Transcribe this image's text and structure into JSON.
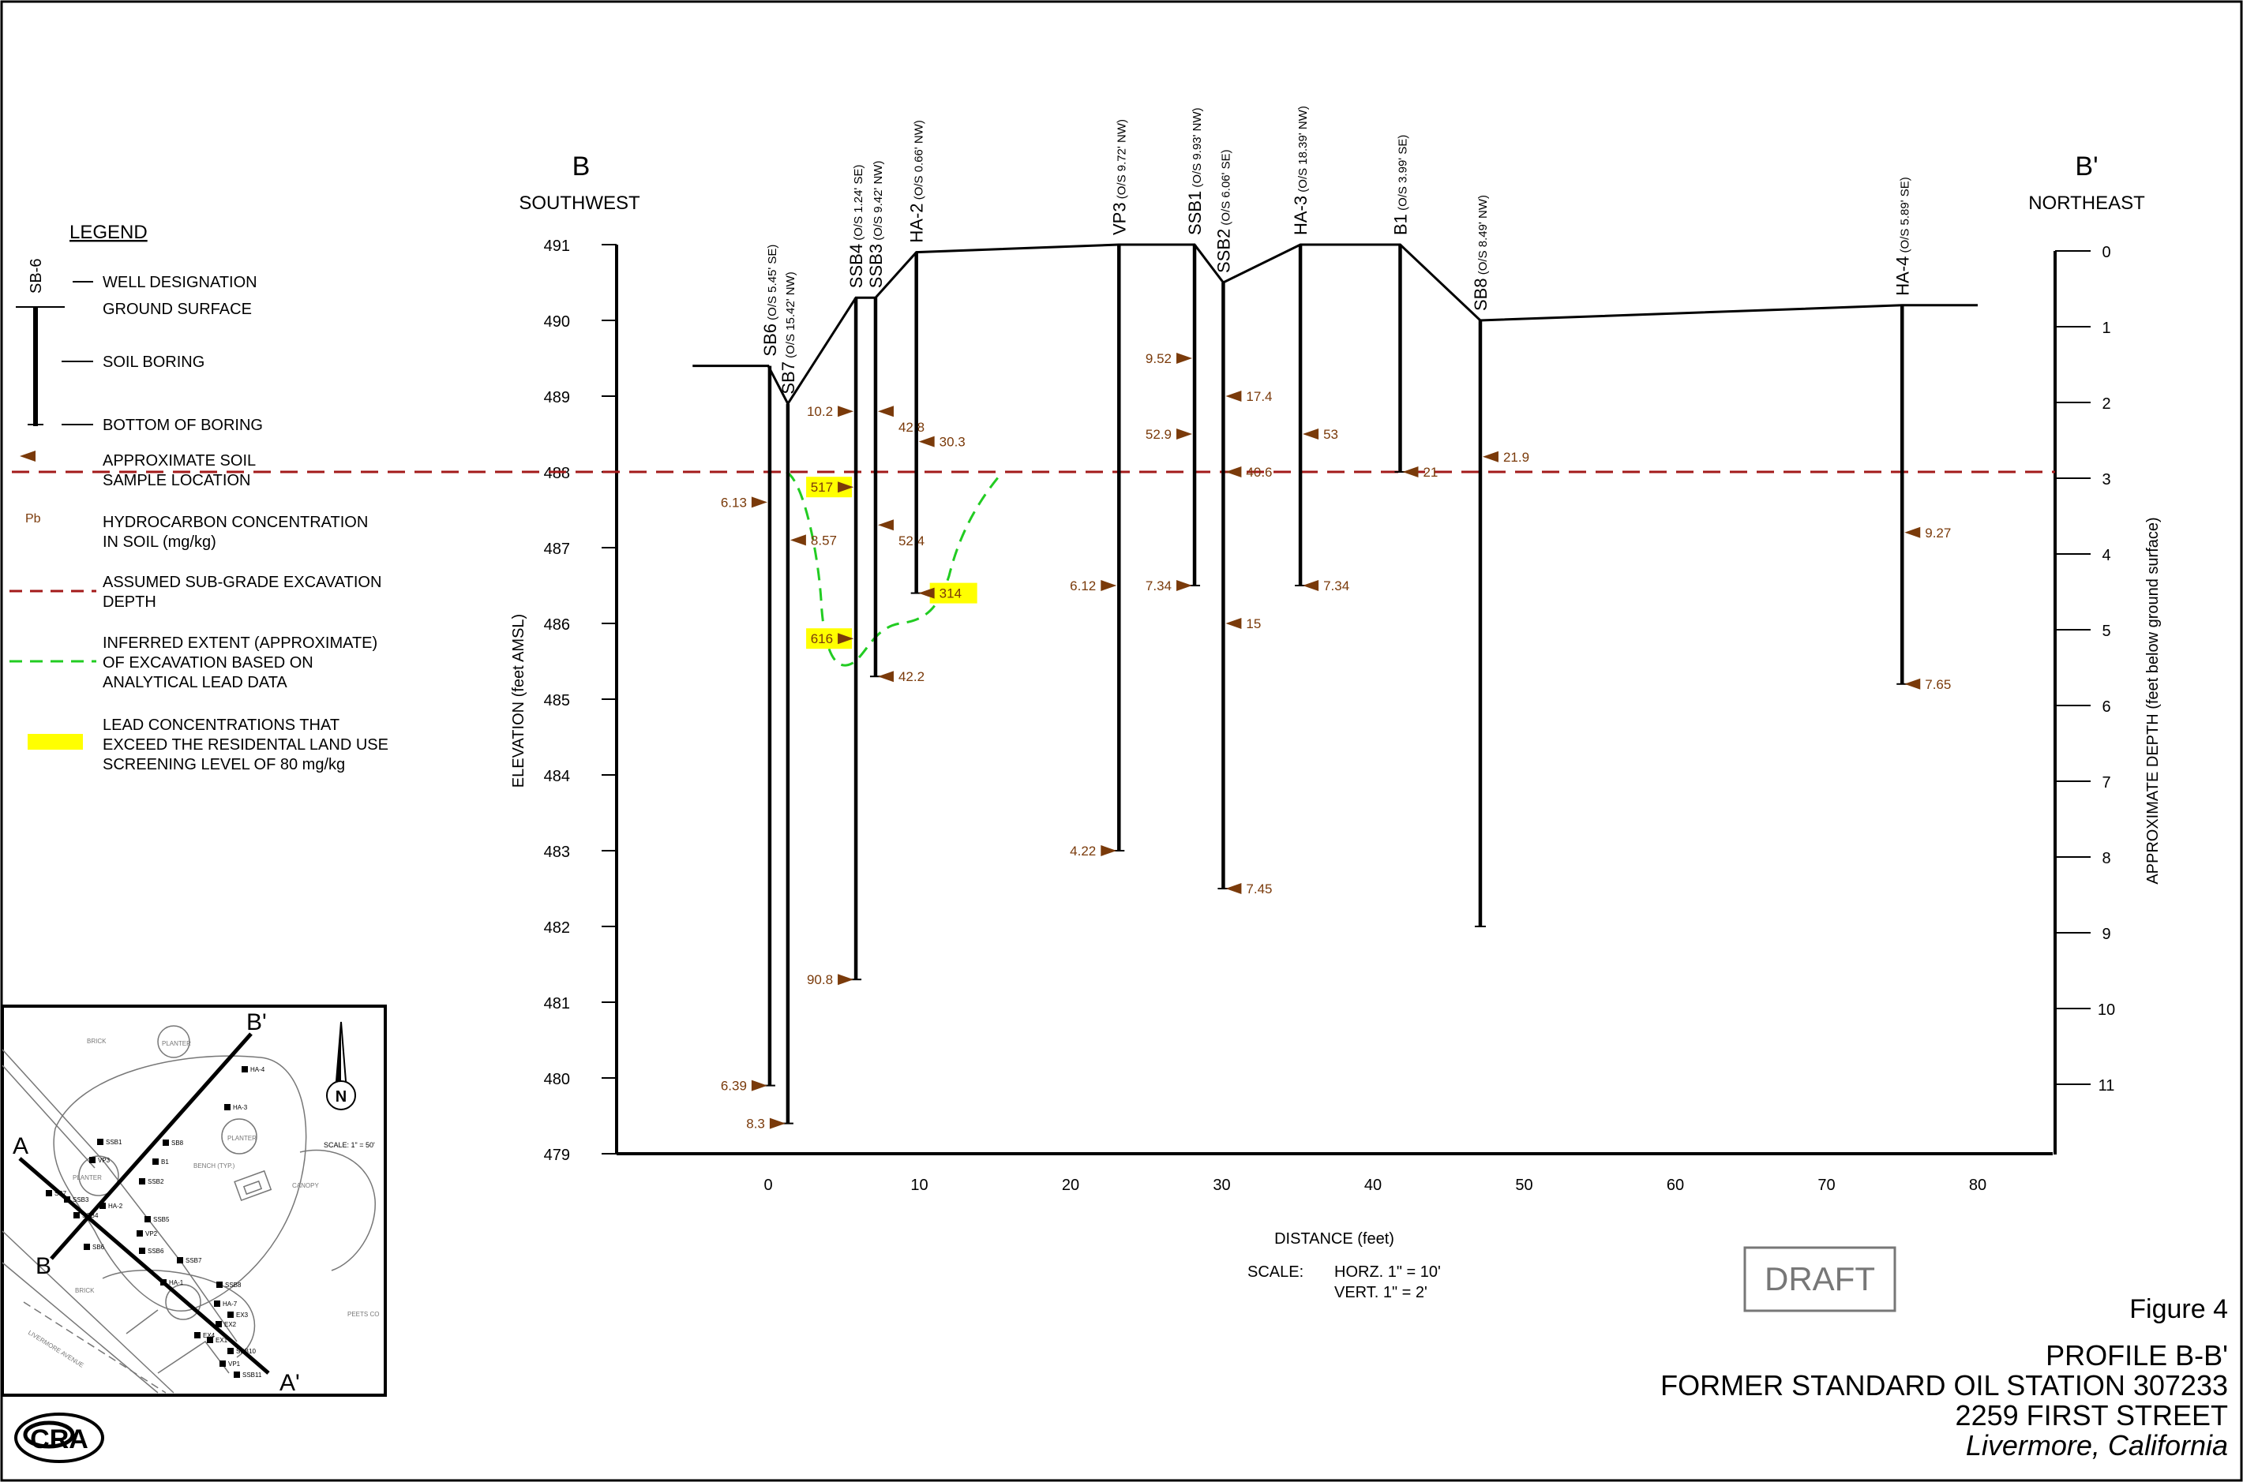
{
  "sheet": {
    "figure_label": "Figure 4",
    "title_lines": [
      "PROFILE B-B'",
      "FORMER STANDARD OIL STATION 307233",
      "2259 FIRST STREET"
    ],
    "location": "Livermore, California",
    "draft_stamp": "DRAFT",
    "logo_text": "CRA"
  },
  "profile": {
    "left_end": "B",
    "right_end": "B'",
    "left_direction": "SOUTHWEST",
    "right_direction": "NORTHEAST",
    "x_label": "DISTANCE (feet)",
    "y_label_left": "ELEVATION (feet AMSL)",
    "y_label_right": "APPROXIMATE DEPTH (feet below ground surface)",
    "scale_label": "SCALE:",
    "scale_horz": "HORZ.   1\" = 10'",
    "scale_vert": "VERT.    1\" = 2'"
  },
  "legend": {
    "title": "LEGEND",
    "well_sample": "SB-6",
    "hc_sample": "Pb",
    "items": {
      "well_designation": "WELL DESIGNATION",
      "ground_surface": "GROUND SURFACE",
      "soil_boring": "SOIL BORING",
      "bottom_of_boring": "BOTTOM OF BORING",
      "soil_sample": [
        "APPROXIMATE SOIL",
        "SAMPLE LOCATION"
      ],
      "hydrocarbon": [
        "HYDROCARBON CONCENTRATION",
        "IN SOIL (mg/kg)"
      ],
      "excavation_depth": [
        "ASSUMED SUB-GRADE EXCAVATION",
        "DEPTH"
      ],
      "inferred_extent": [
        "INFERRED EXTENT (APPROXIMATE)",
        "OF EXCAVATION BASED ON",
        "ANALYTICAL LEAD DATA"
      ],
      "lead_exceed": [
        "LEAD CONCENTRATIONS THAT",
        "EXCEED THE RESIDENTAL LAND USE",
        "SCREENING LEVEL OF 80 mg/kg"
      ]
    }
  },
  "colors": {
    "marker": "#7a3a0a",
    "value_text": "#7a3a0a",
    "excavation_line": "#a31a1a",
    "extent_line": "#22cc22",
    "highlight": "#ffff00",
    "draft": "#777777"
  },
  "chart_data": {
    "type": "profile",
    "x_ticks": [
      0,
      10,
      20,
      30,
      40,
      50,
      60,
      70,
      80
    ],
    "elevation_ticks": [
      491,
      490,
      489,
      488,
      487,
      486,
      485,
      484,
      483,
      482,
      481,
      480,
      479
    ],
    "depth_ticks": [
      0,
      1,
      2,
      3,
      4,
      5,
      6,
      7,
      8,
      9,
      10,
      11
    ],
    "excavation_elevation": 488,
    "ground_profile": [
      [
        -5,
        489.4
      ],
      [
        0,
        489.4
      ],
      [
        1.3,
        488.9
      ],
      [
        5.8,
        490.3
      ],
      [
        7.1,
        490.3
      ],
      [
        9.8,
        490.9
      ],
      [
        23.2,
        491.0
      ],
      [
        28.2,
        491.0
      ],
      [
        30.1,
        490.5
      ],
      [
        35.2,
        491.0
      ],
      [
        41.8,
        491.0
      ],
      [
        47.1,
        490.0
      ],
      [
        75.0,
        490.2
      ],
      [
        80.0,
        490.2
      ]
    ],
    "borings": [
      {
        "name": "SB6",
        "offset": "(O/S 5.45' SE)",
        "x": 0.1,
        "top": 489.4,
        "bottom": 479.9,
        "samples": [
          {
            "elev": 487.6,
            "value": "6.13",
            "side": "left"
          },
          {
            "elev": 479.9,
            "value": "6.39",
            "side": "left"
          }
        ]
      },
      {
        "name": "SB7",
        "offset": "(O/S 15.42' NW)",
        "x": 1.3,
        "top": 488.9,
        "bottom": 479.4,
        "samples": [
          {
            "elev": 487.1,
            "value": "8.57",
            "side": "right"
          },
          {
            "elev": 479.4,
            "value": "8.3",
            "side": "left"
          }
        ]
      },
      {
        "name": "SSB4",
        "offset": "(O/S 1.24' SE)",
        "x": 5.8,
        "top": 490.3,
        "bottom": 481.3,
        "samples": [
          {
            "elev": 488.8,
            "value": "10.2",
            "side": "left"
          },
          {
            "elev": 487.8,
            "value": "517",
            "side": "left",
            "highlight": true
          },
          {
            "elev": 485.8,
            "value": "616",
            "side": "left",
            "highlight": true
          },
          {
            "elev": 481.3,
            "value": "90.8",
            "side": "left"
          }
        ]
      },
      {
        "name": "SSB3",
        "offset": "(O/S 9.42' NW)",
        "x": 7.1,
        "top": 490.3,
        "bottom": 485.3,
        "samples": [
          {
            "elev": 488.8,
            "value": "42.8",
            "side": "right_below"
          },
          {
            "elev": 487.3,
            "value": "52.4",
            "side": "right_below"
          },
          {
            "elev": 485.3,
            "value": "42.2",
            "side": "right"
          }
        ]
      },
      {
        "name": "HA-2",
        "offset": "(O/S 0.66' NW)",
        "x": 9.8,
        "top": 490.9,
        "bottom": 486.4,
        "samples": [
          {
            "elev": 488.4,
            "value": "30.3",
            "side": "right"
          },
          {
            "elev": 486.4,
            "value": "314",
            "side": "right",
            "highlight": true
          }
        ]
      },
      {
        "name": "VP3",
        "offset": "(O/S 9.72' NW)",
        "x": 23.2,
        "top": 491.0,
        "bottom": 483.0,
        "samples": [
          {
            "elev": 486.5,
            "value": "6.12",
            "side": "left"
          },
          {
            "elev": 483.0,
            "value": "4.22",
            "side": "left"
          }
        ]
      },
      {
        "name": "SSB1",
        "offset": "(O/S 9.93' NW)",
        "x": 28.2,
        "top": 491.0,
        "bottom": 486.5,
        "samples": [
          {
            "elev": 489.5,
            "value": "9.52",
            "side": "left"
          },
          {
            "elev": 488.5,
            "value": "52.9",
            "side": "left"
          },
          {
            "elev": 486.5,
            "value": "7.34",
            "side": "left"
          }
        ]
      },
      {
        "name": "SSB2",
        "offset": "(O/S 6.06' SE)",
        "x": 30.1,
        "top": 490.5,
        "bottom": 482.5,
        "samples": [
          {
            "elev": 489.0,
            "value": "17.4",
            "side": "right"
          },
          {
            "elev": 488.0,
            "value": "40.6",
            "side": "right"
          },
          {
            "elev": 486.0,
            "value": "15",
            "side": "right"
          },
          {
            "elev": 482.5,
            "value": "7.45",
            "side": "right"
          }
        ]
      },
      {
        "name": "HA-3",
        "offset": "(O/S 18.39' NW)",
        "x": 35.2,
        "top": 491.0,
        "bottom": 486.5,
        "samples": [
          {
            "elev": 488.5,
            "value": "53",
            "side": "right"
          },
          {
            "elev": 486.5,
            "value": "7.34",
            "side": "right"
          }
        ]
      },
      {
        "name": "B1",
        "offset": "(O/S 3.99' SE)",
        "x": 41.8,
        "top": 491.0,
        "bottom": 488.0,
        "samples": [
          {
            "elev": 488.0,
            "value": "21",
            "side": "right"
          }
        ]
      },
      {
        "name": "SB8",
        "offset": "(O/S 8.49' NW)",
        "x": 47.1,
        "top": 490.0,
        "bottom": 482.0,
        "samples": [
          {
            "elev": 488.2,
            "value": "21.9",
            "side": "right"
          }
        ]
      },
      {
        "name": "HA-4",
        "offset": "(O/S 5.89' SE)",
        "x": 75.0,
        "top": 490.2,
        "bottom": 485.2,
        "samples": [
          {
            "elev": 487.2,
            "value": "9.27",
            "side": "right"
          },
          {
            "elev": 485.2,
            "value": "7.65",
            "side": "right"
          }
        ]
      }
    ]
  },
  "site_map": {
    "scale": "SCALE: 1\" = 50'",
    "section_a": "A",
    "section_a_prime": "A'",
    "section_b": "B",
    "section_b_prime": "B'",
    "north": "N",
    "street": "LIVERMORE AVENUE",
    "labels": [
      "BRICK",
      "PLANTER",
      "PLANTER",
      "PLANTER",
      "BRICK",
      "CANOPY",
      "BENCH (TYP.)",
      "PEETS CO"
    ],
    "wells": [
      "HA-4",
      "HA-3",
      "SB8",
      "SSB1",
      "VP3",
      "B1",
      "SSB2",
      "SB7",
      "SSB3",
      "HA-2",
      "SSB4",
      "SB6",
      "SSB5",
      "VP2",
      "SSB6",
      "SSB7",
      "HA-1",
      "SSB8",
      "HA-7",
      "EX3",
      "EX2",
      "EX4",
      "EX1",
      "SSB10",
      "VP1",
      "SSB11"
    ]
  }
}
